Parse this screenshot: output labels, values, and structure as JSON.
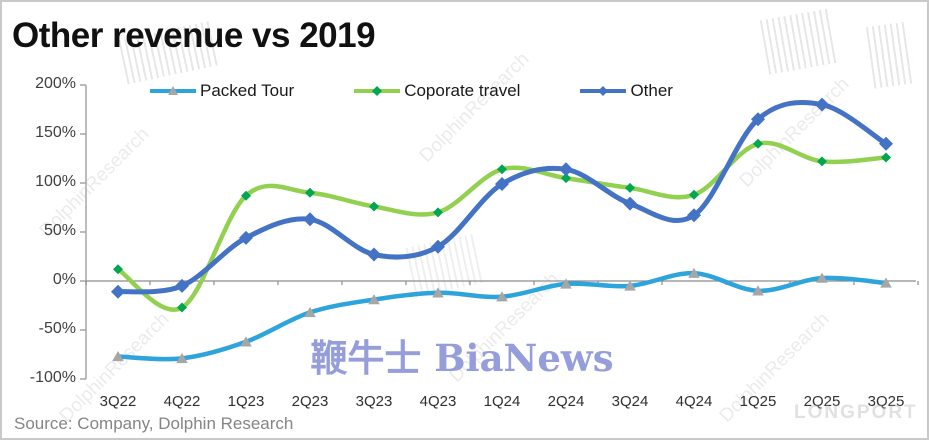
{
  "title": "Other revenue vs 2019",
  "source": "Source: Company, Dolphin Research",
  "watermarks": {
    "center": "鞭牛士 BiaNews",
    "diagonal": "DolphinResearch",
    "corner": "LONGPORT"
  },
  "colors": {
    "axis": "#a6a6a6",
    "zero_line": "#8c8c8c",
    "title": "#111111",
    "tick_labels": "#404040",
    "source": "#858585",
    "watermark_blue": "#8a93d6"
  },
  "chart_data": {
    "type": "line",
    "title": "Other revenue vs 2019",
    "categories": [
      "3Q22",
      "4Q22",
      "1Q23",
      "2Q23",
      "3Q23",
      "4Q23",
      "1Q24",
      "2Q24",
      "3Q24",
      "4Q24",
      "1Q25",
      "2Q25",
      "3Q25"
    ],
    "series": [
      {
        "name": "Packed Tour",
        "color": "#2ea4dc",
        "marker": "triangle",
        "marker_color": "#a6a6a6",
        "line_width": 4.5,
        "values": [
          -77,
          -79,
          -62,
          -32,
          -19,
          -12,
          -16,
          -3,
          -5,
          8,
          -10,
          3,
          -2
        ]
      },
      {
        "name": "Coporate travel",
        "color": "#92d050",
        "marker": "diamond",
        "marker_color": "#00a651",
        "line_width": 4.5,
        "values": [
          12,
          -27,
          87,
          90,
          76,
          70,
          114,
          105,
          95,
          88,
          140,
          122,
          126
        ]
      },
      {
        "name": "Other",
        "color": "#4472c4",
        "marker": "diamond",
        "marker_color": "#4472c4",
        "line_width": 5,
        "values": [
          -11,
          -5,
          44,
          63,
          27,
          35,
          99,
          114,
          79,
          67,
          165,
          180,
          140
        ]
      }
    ],
    "ylim": [
      -100,
      200
    ],
    "ytick_step": 50,
    "ytick_format": "percent",
    "xlabel": "",
    "ylabel": "",
    "grid": false,
    "legend_position": "top",
    "smooth": true
  }
}
